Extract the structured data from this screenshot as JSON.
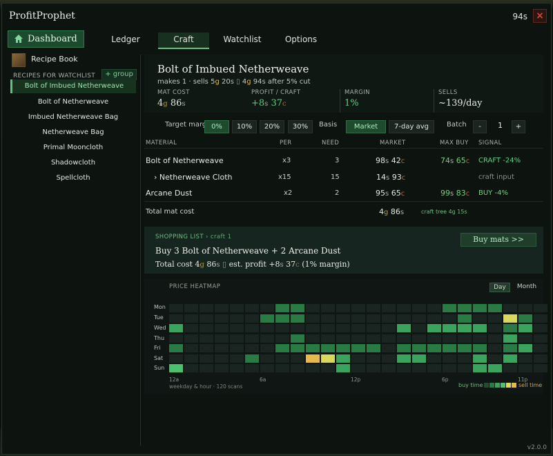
{
  "app": {
    "title": "ProfitProphet",
    "timer": "94s",
    "close_glyph": "×",
    "version": "v2.0.0"
  },
  "nav": {
    "dashboard": "Dashboard",
    "tabs": [
      {
        "label": "Ledger",
        "active": false
      },
      {
        "label": "Craft",
        "active": true
      },
      {
        "label": "Watchlist",
        "active": false
      },
      {
        "label": "Options",
        "active": false
      }
    ]
  },
  "sidebar": {
    "recipe_book": "Recipe Book",
    "section_label": "RECIPES FOR WATCHLIST",
    "add_group": "+ group",
    "recipes": [
      {
        "label": "Bolt of Imbued Netherweave",
        "active": true
      },
      {
        "label": "Bolt of Netherweave",
        "active": false
      },
      {
        "label": "Imbued Netherweave Bag",
        "active": false
      },
      {
        "label": "Netherweave Bag",
        "active": false
      },
      {
        "label": "Primal Mooncloth",
        "active": false
      },
      {
        "label": "Shadowcloth",
        "active": false
      },
      {
        "label": "Spellcloth",
        "active": false
      }
    ]
  },
  "item": {
    "name": "Bolt of Imbued Netherweave",
    "makes": "makes 1",
    "sells_label": "· sells",
    "sells_g": "5",
    "sells_s": "20",
    "after_g": "4",
    "after_s": "94",
    "after_label": "after 5% cut",
    "sep_glyph": "▯"
  },
  "stats": {
    "mat_cost": {
      "label": "MAT COST",
      "g": "4",
      "s": "86"
    },
    "profit": {
      "label": "PROFIT / CRAFT",
      "s": "+8",
      "c": "37"
    },
    "margin": {
      "label": "MARGIN",
      "value": "1%"
    },
    "sells": {
      "label": "SELLS",
      "value": "~139/day"
    }
  },
  "controls": {
    "target_margin_label": "Target margin",
    "margins": [
      {
        "label": "0%",
        "active": true
      },
      {
        "label": "10%",
        "active": false
      },
      {
        "label": "20%",
        "active": false
      },
      {
        "label": "30%",
        "active": false
      }
    ],
    "basis_label": "Basis",
    "basis": [
      {
        "label": "Market",
        "active": true
      },
      {
        "label": "7-day avg",
        "active": false
      }
    ],
    "batch_label": "Batch",
    "batch_minus": "-",
    "batch_value": "1",
    "batch_plus": "+"
  },
  "table": {
    "headers": {
      "material": "MATERIAL",
      "per": "PER",
      "need": "NEED",
      "market": "MARKET",
      "max_buy": "MAX BUY",
      "signal": "SIGNAL"
    },
    "rows": [
      {
        "material": "Bolt of Netherweave",
        "per": "x3",
        "need": "3",
        "market_s": "98",
        "market_c": "42",
        "max_s": "74",
        "max_c": "65",
        "signal": "CRAFT  -24%"
      },
      {
        "material": "› Netherweave Cloth",
        "per": "x15",
        "need": "15",
        "market_s": "14",
        "market_c": "93",
        "max_s": "",
        "max_c": "",
        "signal": "craft input"
      },
      {
        "material": "Arcane Dust",
        "per": "x2",
        "need": "2",
        "market_s": "95",
        "market_c": "65",
        "max_s": "99",
        "max_c": "83",
        "signal": "BUY  -4%"
      }
    ],
    "total_label": "Total mat cost",
    "total_g": "4",
    "total_s": "86",
    "craft_tree": "craft tree 4g 15s"
  },
  "shopping": {
    "label": "SHOPPING LIST",
    "sub": "›  craft 1",
    "line1": "Buy 3 Bolt of Netherweave   +   2 Arcane Dust",
    "total_label": "Total cost",
    "total_g": "4",
    "total_s": "86",
    "est_label": "est. profit",
    "est_s": "+8",
    "est_c": "37",
    "margin_note": "(1% margin)",
    "buy_button": "Buy mats >>"
  },
  "heatmap": {
    "title": "PRICE HEATMAP",
    "tabs": [
      {
        "label": "Day",
        "active": true
      },
      {
        "label": "Month",
        "active": false
      }
    ],
    "days": [
      "Mon",
      "Tue",
      "Wed",
      "Thu",
      "Fri",
      "Sat",
      "Sun"
    ],
    "hour_labels": [
      "12a",
      "6a",
      "12p",
      "6p",
      "11p"
    ],
    "footer": "weekday & hour  ·  120 scans",
    "legend_buy": "buy time",
    "legend_sell": "sell time",
    "colors": [
      "#1a2420",
      "#1f4d2e",
      "#2a7a45",
      "#3aa35d",
      "#4cc06e",
      "#d8d85c",
      "#e6b948"
    ],
    "grid": [
      [
        0,
        0,
        0,
        0,
        0,
        0,
        0,
        2,
        2,
        0,
        0,
        0,
        0,
        0,
        0,
        0,
        0,
        0,
        2,
        2,
        2,
        2,
        0,
        0,
        0
      ],
      [
        0,
        0,
        0,
        0,
        0,
        0,
        2,
        2,
        2,
        0,
        0,
        0,
        0,
        0,
        0,
        0,
        0,
        0,
        0,
        2,
        0,
        0,
        5,
        2,
        0
      ],
      [
        3,
        0,
        0,
        0,
        0,
        0,
        0,
        0,
        0,
        0,
        0,
        0,
        0,
        0,
        0,
        3,
        0,
        3,
        3,
        3,
        3,
        0,
        2,
        3,
        0
      ],
      [
        0,
        0,
        0,
        0,
        0,
        0,
        0,
        0,
        2,
        0,
        0,
        0,
        0,
        0,
        0,
        0,
        0,
        0,
        0,
        0,
        0,
        0,
        3,
        0,
        0
      ],
      [
        2,
        0,
        0,
        0,
        0,
        0,
        0,
        2,
        2,
        2,
        2,
        2,
        2,
        2,
        0,
        2,
        2,
        2,
        2,
        2,
        2,
        0,
        2,
        3,
        0
      ],
      [
        0,
        0,
        0,
        0,
        0,
        2,
        0,
        0,
        0,
        6,
        5,
        3,
        0,
        0,
        0,
        3,
        3,
        0,
        0,
        0,
        3,
        0,
        3,
        0,
        0
      ],
      [
        4,
        0,
        0,
        0,
        0,
        0,
        0,
        0,
        0,
        0,
        0,
        3,
        0,
        0,
        0,
        0,
        0,
        0,
        0,
        0,
        3,
        3,
        0,
        0,
        0
      ]
    ]
  }
}
